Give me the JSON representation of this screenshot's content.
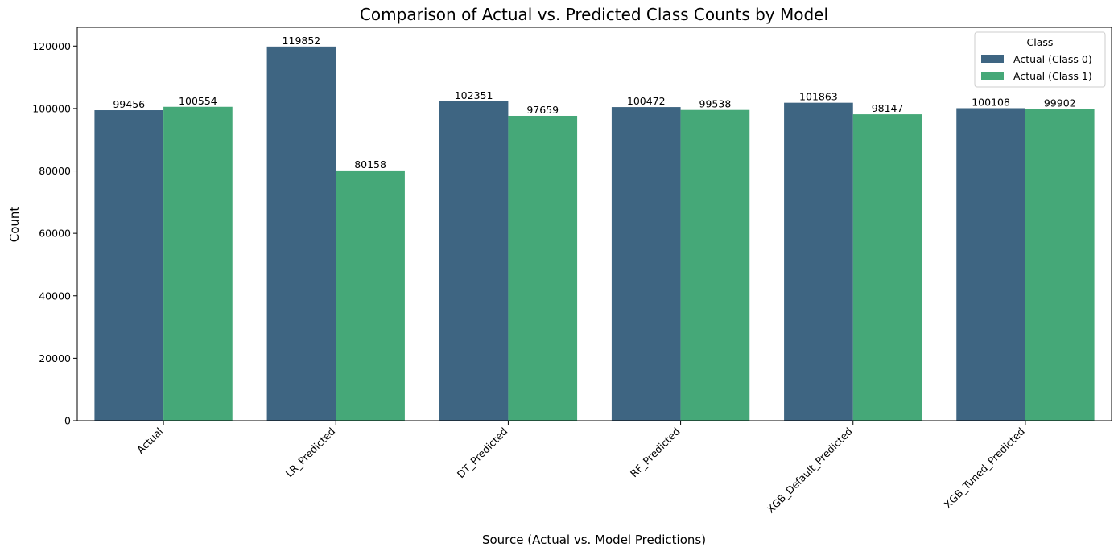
{
  "chart_data": {
    "type": "bar",
    "title": "Comparison of Actual vs. Predicted Class Counts by Model",
    "xlabel": "Source (Actual vs. Model Predictions)",
    "ylabel": "Count",
    "ylim": [
      0,
      126000
    ],
    "yticks": [
      0,
      20000,
      40000,
      60000,
      80000,
      100000,
      120000
    ],
    "ytick_labels": [
      "0",
      "20000",
      "40000",
      "60000",
      "80000",
      "100000",
      "120000"
    ],
    "categories": [
      "Actual",
      "LR_Predicted",
      "DT_Predicted",
      "RF_Predicted",
      "XGB_Default_Predicted",
      "XGB_Tuned_Predicted"
    ],
    "series": [
      {
        "name": "Actual (Class 0)",
        "color": "#3e6582",
        "values": [
          99456,
          119852,
          102351,
          100472,
          101863,
          100108
        ]
      },
      {
        "name": "Actual (Class 1)",
        "color": "#45a878",
        "values": [
          100554,
          80158,
          97659,
          99538,
          98147,
          99902
        ]
      }
    ],
    "data_labels": [
      [
        "99456",
        "119852",
        "102351",
        "100472",
        "101863",
        "100108"
      ],
      [
        "100554",
        "80158",
        "97659",
        "99538",
        "98147",
        "99902"
      ]
    ],
    "legend": {
      "title": "Class",
      "placement": "top-right"
    },
    "grid": false
  }
}
